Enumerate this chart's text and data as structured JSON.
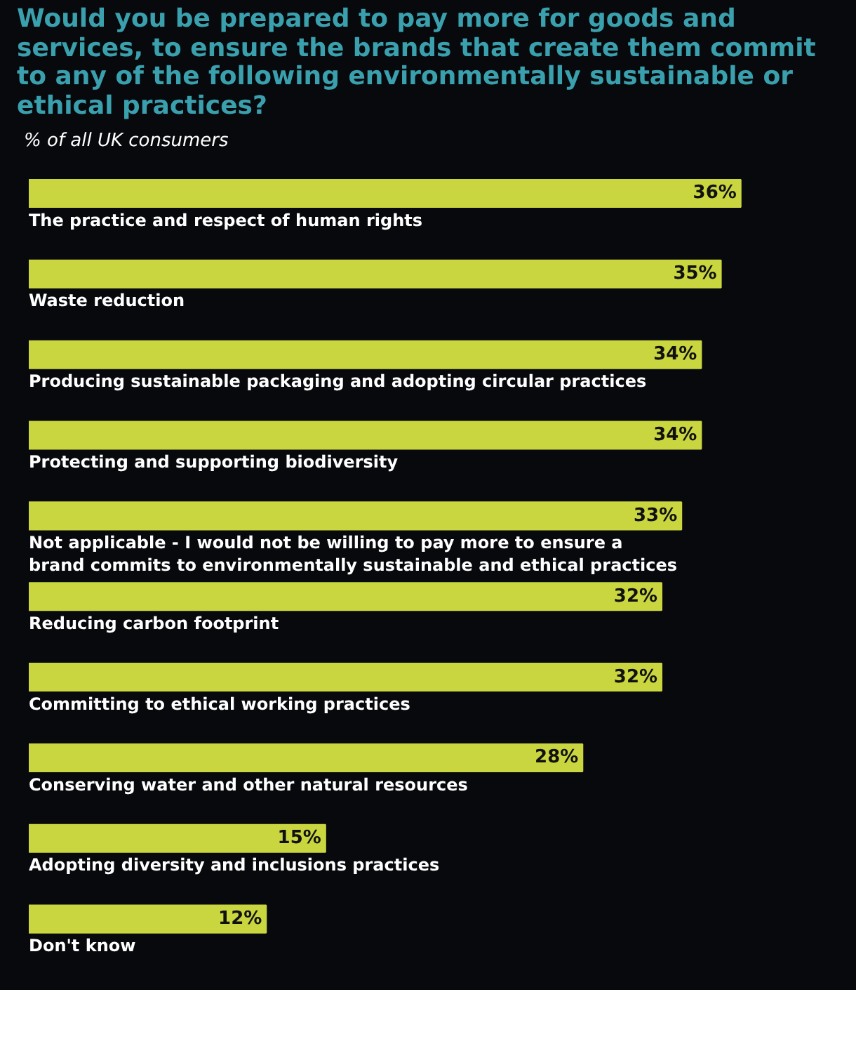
{
  "chart_data": {
    "type": "bar",
    "orientation": "horizontal",
    "title": "Would you be prepared to pay more for goods and services, to ensure the brands that create them commit to any of the following environmentally sustainable or ethical practices?",
    "subtitle": "% of all UK consumers",
    "categories": [
      "The practice and respect of human rights",
      "Waste reduction",
      "Producing sustainable packaging and adopting circular practices",
      "Protecting and supporting biodiversity",
      "Not applicable - I would not be willing to pay more to ensure a brand commits to environmentally sustainable and ethical practices",
      "Reducing carbon footprint",
      "Committing to ethical working practices",
      "Conserving water and other natural resources",
      "Adopting diversity and inclusions practices",
      "Don't know"
    ],
    "values": [
      36,
      35,
      34,
      34,
      33,
      32,
      32,
      28,
      15,
      12
    ],
    "value_labels": [
      "36%",
      "35%",
      "34%",
      "34%",
      "33%",
      "32%",
      "32%",
      "28%",
      "15%",
      "12%"
    ],
    "color": "#c9d63f",
    "grid": false
  }
}
